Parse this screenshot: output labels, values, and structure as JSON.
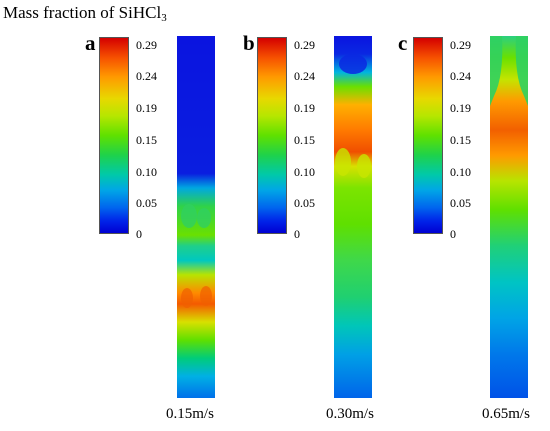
{
  "figure": {
    "title_main": "Mass fraction of SiHCl",
    "title_subscript": "3"
  },
  "colorbar_ticks": [
    "0.29",
    "0.24",
    "0.19",
    "0.15",
    "0.10",
    "0.05",
    "0"
  ],
  "panels": [
    {
      "letter": "a",
      "velocity_label": "0.15m/s"
    },
    {
      "letter": "b",
      "velocity_label": "0.30m/s"
    },
    {
      "letter": "c",
      "velocity_label": "0.65m/s"
    }
  ],
  "colors": {
    "max": "#d40000",
    "high": "#ff9a00",
    "mid": "#5fe100",
    "low": "#00a6e6",
    "min": "#0000d2"
  }
}
